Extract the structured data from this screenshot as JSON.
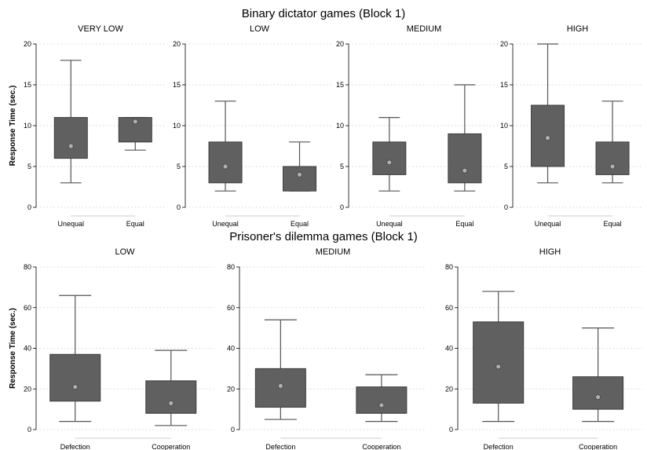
{
  "chart_data": [
    {
      "type": "boxplot",
      "section_title": "Binary dictator games (Block 1)",
      "ylabel": "Response Time (sec.)",
      "ylim": [
        0,
        20
      ],
      "yticks": [
        0,
        5,
        10,
        15,
        20
      ],
      "categories": [
        "Unequal",
        "Equal"
      ],
      "grid": true,
      "panels": [
        {
          "title": "VERY LOW",
          "boxes": [
            {
              "category": "Unequal",
              "min": 3,
              "q1": 6,
              "median": 7.5,
              "q3": 11,
              "max": 18
            },
            {
              "category": "Equal",
              "min": 7,
              "q1": 8,
              "median": 10.5,
              "q3": 11,
              "max": 11
            }
          ]
        },
        {
          "title": "LOW",
          "boxes": [
            {
              "category": "Unequal",
              "min": 2,
              "q1": 3,
              "median": 5,
              "q3": 8,
              "max": 13
            },
            {
              "category": "Equal",
              "min": 2,
              "q1": 2,
              "median": 4,
              "q3": 5,
              "max": 8
            }
          ]
        },
        {
          "title": "MEDIUM",
          "boxes": [
            {
              "category": "Unequal",
              "min": 2,
              "q1": 4,
              "median": 5.5,
              "q3": 8,
              "max": 11
            },
            {
              "category": "Equal",
              "min": 2,
              "q1": 3,
              "median": 4.5,
              "q3": 9,
              "max": 15
            }
          ]
        },
        {
          "title": "HIGH",
          "boxes": [
            {
              "category": "Unequal",
              "min": 3,
              "q1": 5,
              "median": 8.5,
              "q3": 12.5,
              "max": 20
            },
            {
              "category": "Equal",
              "min": 3,
              "q1": 4,
              "median": 5,
              "q3": 8,
              "max": 13
            }
          ]
        }
      ]
    },
    {
      "type": "boxplot",
      "section_title": "Prisoner's dilemma games (Block 1)",
      "ylabel": "Response Time (sec.)",
      "ylim": [
        0,
        80
      ],
      "yticks": [
        0,
        20,
        40,
        60,
        80
      ],
      "categories": [
        "Defection",
        "Cooperation"
      ],
      "grid": true,
      "panels": [
        {
          "title": "LOW",
          "boxes": [
            {
              "category": "Defection",
              "min": 4,
              "q1": 14,
              "median": 21,
              "q3": 37,
              "max": 66
            },
            {
              "category": "Cooperation",
              "min": 2,
              "q1": 8,
              "median": 13,
              "q3": 24,
              "max": 39
            }
          ]
        },
        {
          "title": "MEDIUM",
          "boxes": [
            {
              "category": "Defection",
              "min": 5,
              "q1": 11,
              "median": 21.5,
              "q3": 30,
              "max": 54
            },
            {
              "category": "Cooperation",
              "min": 4,
              "q1": 8,
              "median": 12,
              "q3": 21,
              "max": 27
            }
          ]
        },
        {
          "title": "HIGH",
          "boxes": [
            {
              "category": "Defection",
              "min": 4,
              "q1": 13,
              "median": 31,
              "q3": 53,
              "max": 68
            },
            {
              "category": "Cooperation",
              "min": 4,
              "q1": 10,
              "median": 16,
              "q3": 26,
              "max": 50
            }
          ]
        }
      ]
    }
  ]
}
